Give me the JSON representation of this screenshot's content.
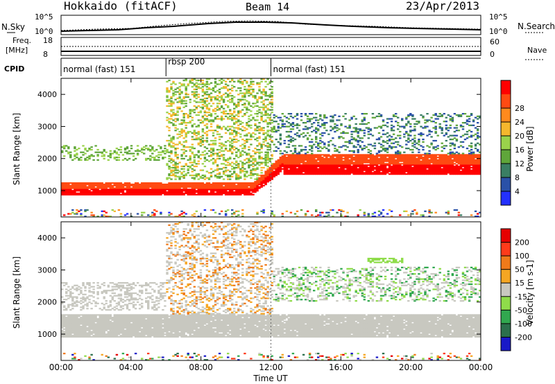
{
  "header": {
    "title_left": "Hokkaido (fitACF)",
    "title_center": "Beam 14",
    "title_right": "23/Apr/2013"
  },
  "top_panels": {
    "nsky_label": "N.Sky",
    "nsearch_label": "N.Search",
    "freq_label_1": "Freq.",
    "freq_label_2": "[MHz]",
    "nave_label": "Nave",
    "noise_ticks_left": [
      "10^5",
      "10^0"
    ],
    "noise_ticks_right": [
      "10^5",
      "10^0"
    ],
    "freq_ticks_left": [
      "18",
      "8"
    ],
    "nave_ticks_right": [
      "60",
      "0"
    ],
    "cpid_label": "CPID",
    "cpid_segments": [
      {
        "label": "normal (fast) 151",
        "start_hour": 0,
        "end_hour": 6
      },
      {
        "label": "rbsp 200",
        "start_hour": 6,
        "end_hour": 12
      },
      {
        "label": "normal (fast) 151",
        "start_hour": 12,
        "end_hour": 24
      }
    ]
  },
  "chart_data": [
    {
      "type": "heatmap",
      "title": "",
      "xlabel": "Time UT",
      "ylabel": "Slant Range [km]",
      "xlim": [
        0,
        24
      ],
      "ylim": [
        180,
        4500
      ],
      "x_ticks": [
        "00:00",
        "04:00",
        "08:00",
        "12:00",
        "16:00",
        "20:00",
        "00:00"
      ],
      "y_ticks": [
        "1000",
        "2000",
        "3000",
        "4000"
      ],
      "colorbar": {
        "label": "Power [dB]",
        "ticks": [
          "4",
          "8",
          "12",
          "16",
          "20",
          "24",
          "28"
        ],
        "colors": [
          "#2330ff",
          "#2a51a8",
          "#3a7e63",
          "#5fa63a",
          "#9ad24b",
          "#f5b72d",
          "#ff8a1d",
          "#ff4a12",
          "#ff0000"
        ]
      },
      "features": [
        {
          "name": "main echo band",
          "start_hour": 0,
          "end_hour": 11,
          "range_km": [
            850,
            1250
          ]
        },
        {
          "name": "ramp to 2000 km",
          "start_hour": 11,
          "end_hour": 12.6,
          "range_km": [
            1200,
            2100
          ]
        },
        {
          "name": "high band",
          "start_hour": 12.6,
          "end_hour": 24,
          "range_km": [
            1500,
            2100
          ]
        }
      ]
    },
    {
      "type": "heatmap",
      "title": "",
      "xlabel": "Time UT",
      "ylabel": "Slant Range [km]",
      "xlim": [
        0,
        24
      ],
      "ylim": [
        180,
        4500
      ],
      "x_ticks": [
        "00:00",
        "04:00",
        "08:00",
        "12:00",
        "16:00",
        "20:00",
        "00:00"
      ],
      "y_ticks": [
        "1000",
        "2000",
        "3000",
        "4000"
      ],
      "colorbar": {
        "label": "Velocity [m s-1]",
        "ticks": [
          "200",
          "100",
          "50",
          "15",
          "-15",
          "-50",
          "-100",
          "-200"
        ],
        "colors": [
          "#1919c8",
          "#2b6f4c",
          "#31a84f",
          "#8fdc4a",
          "#c8c8c0",
          "#f5a623",
          "#f07a1a",
          "#ff3b1a",
          "#e60000"
        ]
      },
      "features": [
        {
          "name": "grey band",
          "start_hour": 0,
          "end_hour": 24,
          "range_km": [
            900,
            1600
          ]
        }
      ]
    }
  ]
}
